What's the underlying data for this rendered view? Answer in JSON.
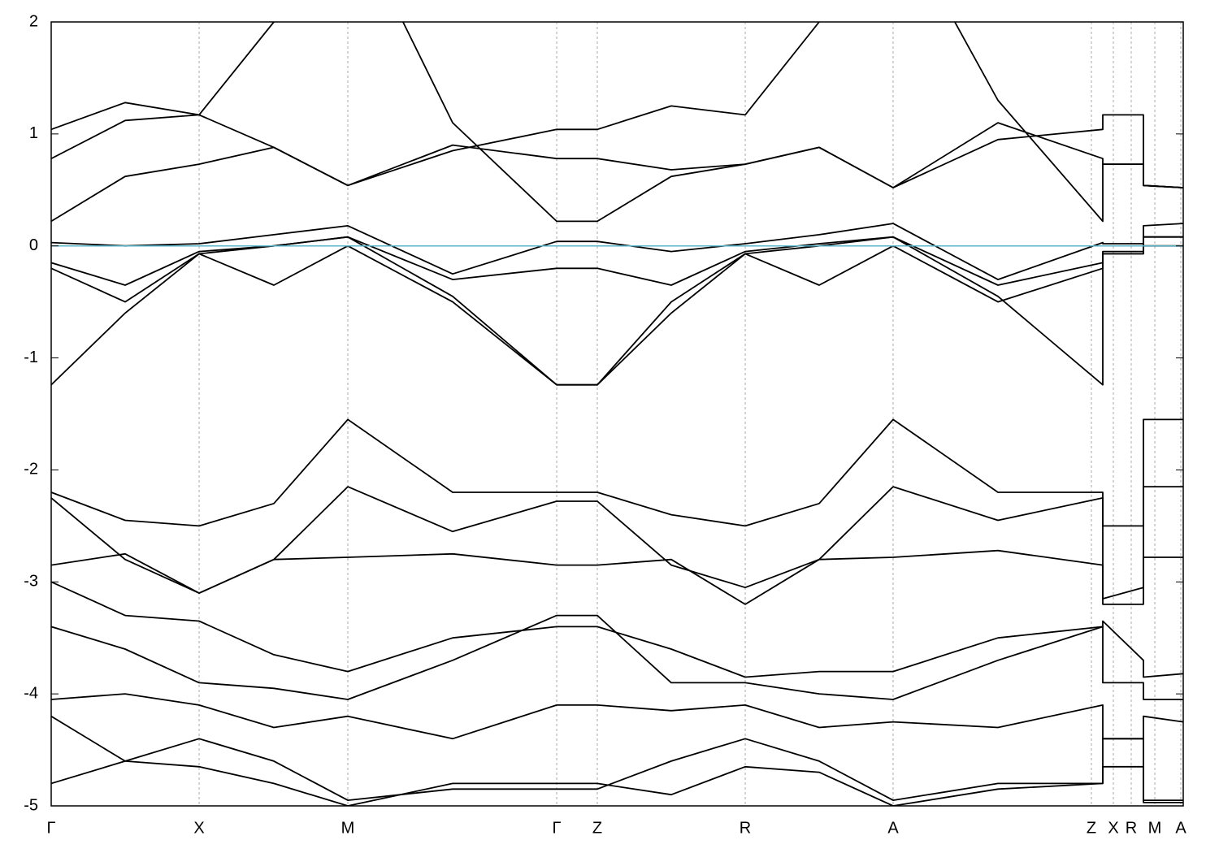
{
  "chart_data": {
    "type": "line",
    "x": [
      0,
      91,
      182,
      274,
      365,
      494,
      622,
      672,
      763,
      854,
      945,
      1036,
      1165,
      1294,
      1294,
      1344,
      1344,
      1393
    ],
    "xlim": [
      0,
      1393
    ],
    "xticks": [
      {
        "value": 0,
        "label": "Γ"
      },
      {
        "value": 182,
        "label": "X"
      },
      {
        "value": 365,
        "label": "M"
      },
      {
        "value": 622,
        "label": "Γ"
      },
      {
        "value": 672,
        "label": "Z"
      },
      {
        "value": 854,
        "label": "R"
      },
      {
        "value": 1036,
        "label": "A"
      },
      {
        "value": 1280,
        "label": "Z"
      },
      {
        "value": 1307,
        "label": "X"
      },
      {
        "value": 1329,
        "label": "R"
      },
      {
        "value": 1358,
        "label": "M"
      },
      {
        "value": 1390,
        "label": "A"
      }
    ],
    "ylim": [
      -5,
      2
    ],
    "yticks": [
      2,
      1,
      0,
      -1,
      -2,
      -3,
      -4,
      -5
    ],
    "grid": true,
    "fermi_level": 0,
    "fermi_color": "#5ab4c8",
    "series": [
      {
        "color": "#000000",
        "values": [
          0.22,
          0.62,
          0.73,
          0.88,
          0.54,
          0.85,
          1.04,
          1.04,
          1.25,
          1.17,
          2.0,
          3.0,
          1.3,
          0.22,
          0.73,
          0.73,
          0.54,
          0.52
        ]
      },
      {
        "color": "#000000",
        "values": [
          0.78,
          1.12,
          1.17,
          2.0,
          3.0,
          1.1,
          0.22,
          0.22,
          0.62,
          0.73,
          0.88,
          0.52,
          0.95,
          1.04,
          1.17,
          1.17,
          0.54,
          0.52
        ]
      },
      {
        "color": "#000000",
        "values": [
          1.04,
          1.28,
          1.17,
          0.88,
          0.54,
          0.9,
          0.78,
          0.78,
          0.68,
          0.73,
          0.88,
          0.52,
          1.1,
          0.78,
          0.73,
          0.73,
          0.54,
          0.52
        ]
      },
      {
        "color": "#000000",
        "values": [
          0.03,
          0.0,
          0.02,
          0.1,
          0.18,
          -0.25,
          0.04,
          0.04,
          -0.05,
          0.02,
          0.1,
          0.2,
          -0.3,
          0.03,
          0.02,
          0.02,
          0.18,
          0.2
        ]
      },
      {
        "color": "#000000",
        "values": [
          -0.15,
          -0.35,
          -0.05,
          0.0,
          0.08,
          -0.3,
          -0.2,
          -0.2,
          -0.35,
          -0.05,
          0.02,
          0.08,
          -0.35,
          -0.15,
          -0.05,
          -0.05,
          0.08,
          0.08
        ]
      },
      {
        "color": "#000000",
        "values": [
          -0.2,
          -0.5,
          -0.07,
          -0.35,
          0.0,
          -0.5,
          -1.24,
          -1.24,
          -0.5,
          -0.07,
          -0.35,
          0.0,
          -0.5,
          -0.2,
          -0.07,
          -0.07,
          0.0,
          0.0
        ]
      },
      {
        "color": "#000000",
        "values": [
          -1.24,
          -0.6,
          -0.07,
          0.0,
          0.08,
          -0.45,
          -1.24,
          -1.24,
          -0.6,
          -0.07,
          0.0,
          0.08,
          -0.45,
          -1.24,
          -0.07,
          -0.07,
          0.08,
          0.08
        ]
      },
      {
        "color": "#000000",
        "values": [
          -2.2,
          -2.45,
          -2.5,
          -2.3,
          -1.55,
          -2.2,
          -2.2,
          -2.2,
          -2.4,
          -2.5,
          -2.3,
          -1.55,
          -2.2,
          -2.2,
          -2.5,
          -2.5,
          -1.55,
          -1.55
        ]
      },
      {
        "color": "#000000",
        "values": [
          -2.25,
          -2.8,
          -3.1,
          -2.8,
          -2.15,
          -2.55,
          -2.28,
          -2.28,
          -2.85,
          -3.05,
          -2.8,
          -2.15,
          -2.45,
          -2.25,
          -3.15,
          -3.05,
          -2.15,
          -2.15
        ]
      },
      {
        "color": "#000000",
        "values": [
          -2.85,
          -2.75,
          -3.1,
          -2.8,
          -2.78,
          -2.75,
          -2.85,
          -2.85,
          -2.8,
          -3.2,
          -2.8,
          -2.78,
          -2.72,
          -2.85,
          -3.2,
          -3.2,
          -2.78,
          -2.78
        ]
      },
      {
        "color": "#000000",
        "values": [
          -3.0,
          -3.3,
          -3.35,
          -3.65,
          -3.8,
          -3.5,
          -3.4,
          -3.4,
          -3.6,
          -3.85,
          -3.8,
          -3.8,
          -3.5,
          -3.4,
          -3.35,
          -3.7,
          -3.85,
          -3.82
        ]
      },
      {
        "color": "#000000",
        "values": [
          -3.4,
          -3.6,
          -3.9,
          -3.95,
          -4.05,
          -3.7,
          -3.3,
          -3.3,
          -3.9,
          -3.9,
          -4.0,
          -4.05,
          -3.7,
          -3.4,
          -3.9,
          -3.9,
          -4.05,
          -4.05
        ]
      },
      {
        "color": "#000000",
        "values": [
          -4.05,
          -4.0,
          -4.1,
          -4.3,
          -4.2,
          -4.4,
          -4.1,
          -4.1,
          -4.15,
          -4.1,
          -4.3,
          -4.25,
          -4.3,
          -4.1,
          -4.4,
          -4.4,
          -4.2,
          -4.25
        ]
      },
      {
        "color": "#000000",
        "values": [
          -4.2,
          -4.6,
          -4.65,
          -4.8,
          -5.0,
          -4.8,
          -4.8,
          -4.8,
          -4.9,
          -4.65,
          -4.7,
          -5.0,
          -4.85,
          -4.8,
          -4.65,
          -4.65,
          -4.95,
          -4.95
        ]
      },
      {
        "color": "#000000",
        "values": [
          -4.8,
          -4.6,
          -4.4,
          -4.6,
          -4.95,
          -4.85,
          -4.85,
          -4.85,
          -4.6,
          -4.4,
          -4.6,
          -4.95,
          -4.8,
          -4.8,
          -4.4,
          -4.4,
          -4.97,
          -4.97
        ]
      }
    ]
  }
}
